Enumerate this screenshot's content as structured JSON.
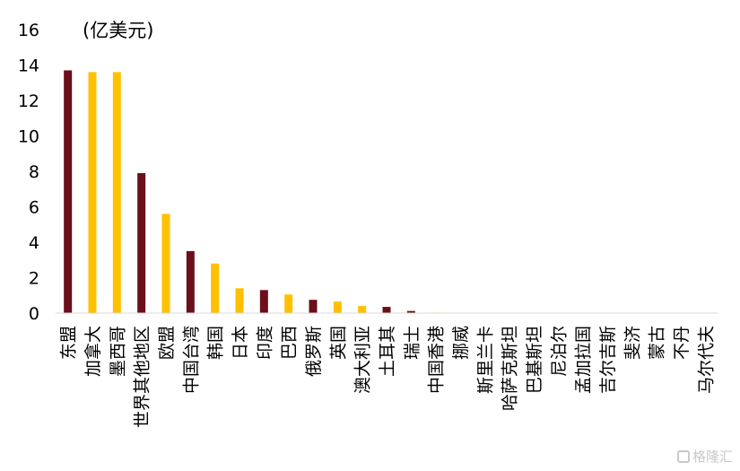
{
  "chart_data": {
    "type": "bar",
    "unit_label": "(亿美元)",
    "ylim": [
      0,
      16
    ],
    "yticks": [
      0,
      2,
      4,
      6,
      8,
      10,
      12,
      14,
      16
    ],
    "grid": false,
    "legend": "none",
    "categories": [
      "东盟",
      "加拿大",
      "墨西哥",
      "世界其他地区",
      "欧盟",
      "中国台湾",
      "韩国",
      "日本",
      "印度",
      "巴西",
      "俄罗斯",
      "英国",
      "澳大利亚",
      "土耳其",
      "瑞士",
      "中国香港",
      "挪威",
      "斯里兰卡",
      "哈萨克斯坦",
      "巴基斯坦",
      "尼泊尔",
      "孟加拉国",
      "吉尔吉斯",
      "斐济",
      "蒙古",
      "不丹",
      "马尔代夫"
    ],
    "values": [
      13.7,
      13.6,
      13.6,
      7.9,
      5.6,
      3.5,
      2.8,
      1.4,
      1.3,
      1.05,
      0.75,
      0.65,
      0.4,
      0.35,
      0.12,
      0.03,
      0.02,
      0.01,
      0.01,
      0.01,
      0.01,
      0.01,
      0.01,
      0.0,
      0.0,
      0.0,
      0.0
    ],
    "colors": [
      "#6b0f1a",
      "#ffc000",
      "#ffc000",
      "#6b0f1a",
      "#ffc000",
      "#6b0f1a",
      "#ffc000",
      "#ffc000",
      "#6b0f1a",
      "#ffc000",
      "#6b0f1a",
      "#ffc000",
      "#ffc000",
      "#6b0f1a",
      "#6b0f1a",
      "#ffc000",
      "#6b0f1a",
      "#ffc000",
      "#ffc000",
      "#6b0f1a",
      "#ffc000",
      "#6b0f1a",
      "#ffc000",
      "#ffc000",
      "#6b0f1a",
      "#ffc000",
      "#6b0f1a"
    ]
  },
  "watermark": {
    "text": "格隆汇",
    "icon": "watermark-logo-icon"
  }
}
